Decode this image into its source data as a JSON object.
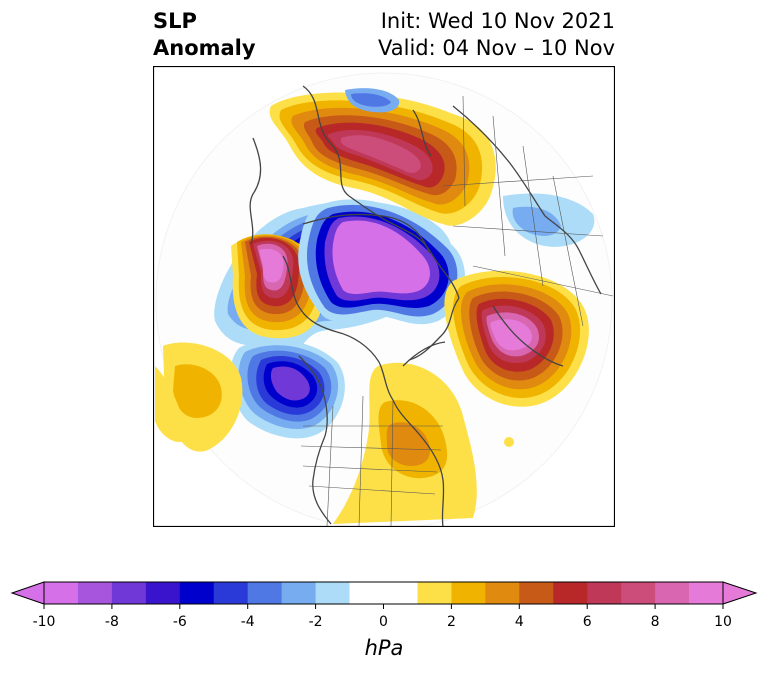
{
  "title": {
    "left_line1": "SLP",
    "left_line2": "Anomaly",
    "right_line1": "Init: Wed 10 Nov 2021",
    "right_line2": "Valid: 04 Nov – 10 Nov"
  },
  "colorbar": {
    "label": "hPa",
    "ticks": [
      "-10",
      "-8",
      "-6",
      "-4",
      "-2",
      "0",
      "2",
      "4",
      "6",
      "8",
      "10"
    ],
    "colors": [
      "#d670e8",
      "#a855de",
      "#7038d6",
      "#3a14cc",
      "#0000cc",
      "#2a3ad8",
      "#4f78e4",
      "#77acf0",
      "#acdcf8",
      "#ffffff",
      "#ffffff",
      "#fde047",
      "#f0b400",
      "#e08a10",
      "#c85a18",
      "#b82828",
      "#c03858",
      "#cc4c7a",
      "#d866b0",
      "#e67ad8"
    ]
  },
  "map": {
    "projection": "north-polar-stereographic",
    "features": [
      "coastlines",
      "country-borders",
      "state-borders"
    ]
  }
}
